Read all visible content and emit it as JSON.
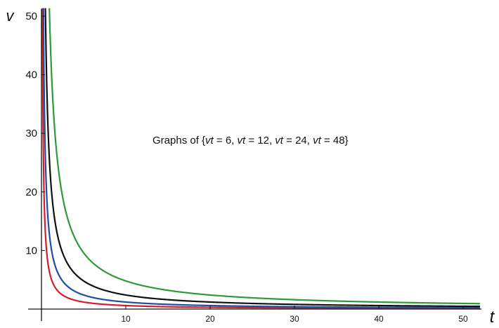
{
  "chart_data": {
    "type": "line",
    "title": "",
    "annotation": {
      "prefix": "Graphs of {",
      "items": [
        {
          "var": "vt",
          "rest": " = 6"
        },
        {
          "var": "vt",
          "rest": " = 12"
        },
        {
          "var": "vt",
          "rest": " = 24"
        },
        {
          "var": "vt",
          "rest": " = 48"
        }
      ],
      "separator": ", ",
      "suffix": "}"
    },
    "xlabel": "t",
    "ylabel": "v",
    "xlim": [
      0,
      52
    ],
    "ylim": [
      0,
      51
    ],
    "x_ticks": [
      10,
      20,
      30,
      40,
      50
    ],
    "y_ticks": [
      10,
      20,
      30,
      40,
      50
    ],
    "grid": false,
    "legend": "none",
    "series": [
      {
        "constant": 6,
        "color": "#d21f2e",
        "function": "v = 6 / t"
      },
      {
        "constant": 12,
        "color": "#1f4fa0",
        "function": "v = 12 / t"
      },
      {
        "constant": 24,
        "color": "#111111",
        "function": "v = 24 / t"
      },
      {
        "constant": 48,
        "color": "#2e9a3a",
        "function": "v = 48 / t"
      }
    ]
  }
}
